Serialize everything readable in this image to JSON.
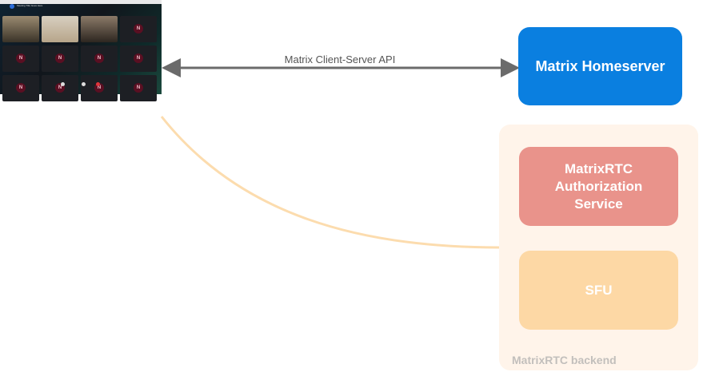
{
  "client_screenshot": {
    "meeting_title": "Meeting Title Goes Here",
    "avatar_letter": "N"
  },
  "edges": {
    "client_server_api": "Matrix Client-Server API"
  },
  "nodes": {
    "homeserver": "Matrix Homeserver",
    "auth_service": "MatrixRTC Authorization Service",
    "sfu": "SFU"
  },
  "groups": {
    "backend": "MatrixRTC backend"
  },
  "colors": {
    "homeserver": "#0a7fe0",
    "auth_service": "#e9938b",
    "sfu": "#fdd8a5",
    "backend_bg": "#fff4ea",
    "backend_label": "#c2bfbc",
    "arrow": "#6b6b6b",
    "curve": "#fcdcae"
  }
}
